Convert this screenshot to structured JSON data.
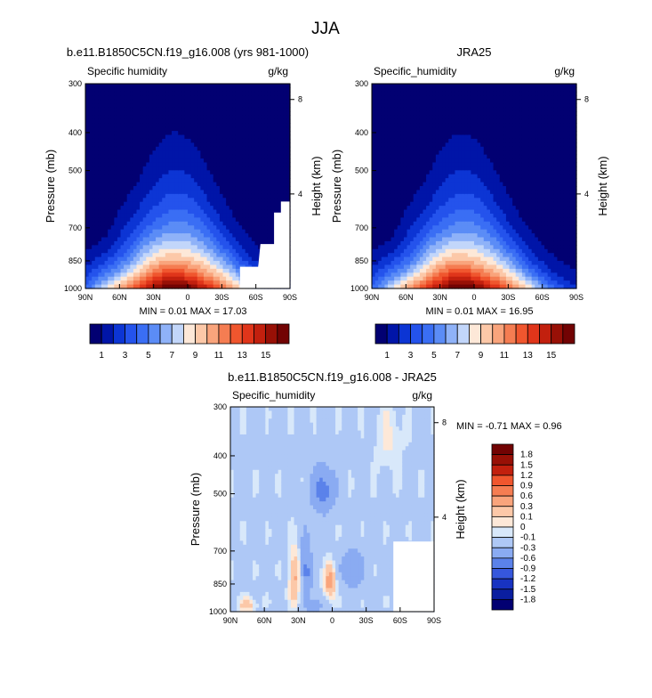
{
  "figure_title": "JJA",
  "chart_data": [
    {
      "type": "heatmap",
      "title": "b.e11.B1850C5CN.f19_g16.008 (yrs 981-1000)",
      "left_label": "Specific humidity",
      "units": "g/kg",
      "xlabel": "",
      "ylabel": "Pressure (mb)",
      "ylabel_right": "Height (km)",
      "x_ticks": [
        "90N",
        "60N",
        "30N",
        "0",
        "30S",
        "60S",
        "90S"
      ],
      "x_tick_values": [
        90,
        60,
        30,
        0,
        -30,
        -60,
        -90
      ],
      "xlim": [
        90,
        -90
      ],
      "y_ticks": [
        "300",
        "400",
        "500",
        "700",
        "850",
        "1000"
      ],
      "y_tick_values": [
        300,
        400,
        500,
        700,
        850,
        1000
      ],
      "ylim": [
        1000,
        300
      ],
      "right_ticks": [
        "8",
        "4"
      ],
      "right_tick_values": [
        8,
        4
      ],
      "stats": {
        "min_label": "MIN =",
        "min": "0.01",
        "max_label": "MAX =",
        "max": "17.03"
      },
      "levels": [
        1,
        2,
        3,
        4,
        5,
        6,
        7,
        8,
        9,
        10,
        11,
        12,
        13,
        14,
        15,
        16
      ],
      "colorbar_labels": [
        "1",
        "3",
        "5",
        "7",
        "9",
        "11",
        "13",
        "15"
      ],
      "peak": 17.03,
      "peak_lat": 10,
      "masked": true
    },
    {
      "type": "heatmap",
      "title": "JRA25",
      "left_label": "Specific_humidity",
      "units": "g/kg",
      "xlabel": "",
      "ylabel": "Pressure (mb)",
      "ylabel_right": "Height (km)",
      "x_ticks": [
        "90N",
        "60N",
        "30N",
        "0",
        "30S",
        "60S",
        "90S"
      ],
      "x_tick_values": [
        90,
        60,
        30,
        0,
        -30,
        -60,
        -90
      ],
      "xlim": [
        90,
        -90
      ],
      "y_ticks": [
        "300",
        "400",
        "500",
        "700",
        "850",
        "1000"
      ],
      "y_tick_values": [
        300,
        400,
        500,
        700,
        850,
        1000
      ],
      "ylim": [
        1000,
        300
      ],
      "right_ticks": [
        "8",
        "4"
      ],
      "right_tick_values": [
        8,
        4
      ],
      "stats": {
        "min_label": "MIN =",
        "min": "0.01",
        "max_label": "MAX =",
        "max": "16.95"
      },
      "levels": [
        1,
        2,
        3,
        4,
        5,
        6,
        7,
        8,
        9,
        10,
        11,
        12,
        13,
        14,
        15,
        16
      ],
      "colorbar_labels": [
        "1",
        "3",
        "5",
        "7",
        "9",
        "11",
        "13",
        "15"
      ],
      "peak": 16.95,
      "peak_lat": 10,
      "masked": false
    },
    {
      "type": "heatmap",
      "title": "b.e11.B1850C5CN.f19_g16.008 - JRA25",
      "left_label": "Specific_humidity",
      "units": "g/kg",
      "xlabel": "",
      "ylabel": "Pressure (mb)",
      "ylabel_right": "Height (km)",
      "x_ticks": [
        "90N",
        "60N",
        "30N",
        "0",
        "30S",
        "60S",
        "90S"
      ],
      "x_tick_values": [
        90,
        60,
        30,
        0,
        -30,
        -60,
        -90
      ],
      "xlim": [
        90,
        -90
      ],
      "y_ticks": [
        "300",
        "400",
        "500",
        "700",
        "850",
        "1000"
      ],
      "y_tick_values": [
        300,
        400,
        500,
        700,
        850,
        1000
      ],
      "ylim": [
        1000,
        300
      ],
      "right_ticks": [
        "8",
        "4"
      ],
      "right_tick_values": [
        8,
        4
      ],
      "stats": {
        "min_label": "MIN =",
        "min": "-0.71",
        "max_label": "MAX =",
        "max": "0.96"
      },
      "levels": [
        -1.8,
        -1.5,
        -1.2,
        -0.9,
        -0.6,
        -0.3,
        -0.1,
        0,
        0.1,
        0.3,
        0.6,
        0.9,
        1.2,
        1.5,
        1.8
      ],
      "colorbar_labels": [
        "1.8",
        "1.5",
        "1.2",
        "0.9",
        "0.6",
        "0.3",
        "0.1",
        "0",
        "-0.1",
        "-0.3",
        "-0.6",
        "-0.9",
        "-1.2",
        "-1.5",
        "-1.8"
      ],
      "masked": true
    }
  ],
  "colors": {
    "abs": [
      "#020072",
      "#0015a8",
      "#0c35d4",
      "#2453ec",
      "#3a6ef4",
      "#5b8cf6",
      "#8fb2f8",
      "#c2d6fa",
      "#fde8d8",
      "#fcc8a8",
      "#f9a47c",
      "#f57d52",
      "#f0562e",
      "#e0351a",
      "#c2200e",
      "#981006",
      "#720303"
    ],
    "diff": [
      "#720303",
      "#981006",
      "#c2200e",
      "#f0562e",
      "#f57d52",
      "#f9a47c",
      "#fcc8a8",
      "#fde8d8",
      "#d8e8fa",
      "#aec8f6",
      "#8aabf2",
      "#5b82ea",
      "#3657dc",
      "#1833c2",
      "#0a1ea0",
      "#020072"
    ]
  }
}
